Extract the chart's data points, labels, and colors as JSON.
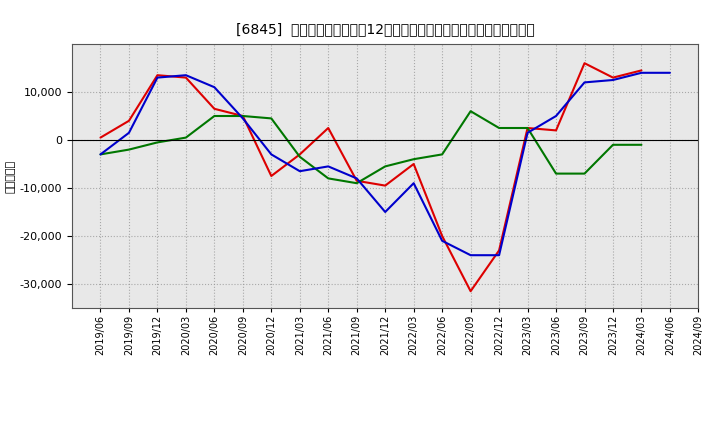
{
  "title": "[6845]  キャッシュフローの12か月移動合計の対前年同期増減額の推移",
  "ylabel": "（百万円）",
  "background_color": "#ffffff",
  "plot_bg_color": "#e8e8e8",
  "grid_color": "#999999",
  "x_labels": [
    "2019/06",
    "2019/09",
    "2019/12",
    "2020/03",
    "2020/06",
    "2020/09",
    "2020/12",
    "2021/03",
    "2021/06",
    "2021/09",
    "2021/12",
    "2022/03",
    "2022/06",
    "2022/09",
    "2022/12",
    "2023/03",
    "2023/06",
    "2023/09",
    "2023/12",
    "2024/03",
    "2024/06",
    "2024/09"
  ],
  "sales_cf": [
    500,
    4000,
    13500,
    13000,
    6500,
    5000,
    -7500,
    -3000,
    2500,
    -8500,
    -9500,
    -5000,
    -20000,
    -31500,
    -23000,
    2500,
    2000,
    16000,
    13000,
    14500,
    null,
    null
  ],
  "invest_cf": [
    -3000,
    -2000,
    -500,
    500,
    5000,
    5000,
    4500,
    -3500,
    -8000,
    -9000,
    -5500,
    -4000,
    -3000,
    6000,
    2500,
    2500,
    -7000,
    -7000,
    -1000,
    -1000,
    null,
    null
  ],
  "free_cf": [
    -3000,
    1500,
    13000,
    13500,
    11000,
    4500,
    -3000,
    -6500,
    -5500,
    -8000,
    -15000,
    -9000,
    -21000,
    -24000,
    -24000,
    1500,
    5000,
    12000,
    12500,
    14000,
    14000,
    null
  ],
  "sales_cf_color": "#dd0000",
  "invest_cf_color": "#007700",
  "free_cf_color": "#0000cc",
  "ylim": [
    -35000,
    20000
  ],
  "yticks": [
    -30000,
    -20000,
    -10000,
    0,
    10000
  ]
}
